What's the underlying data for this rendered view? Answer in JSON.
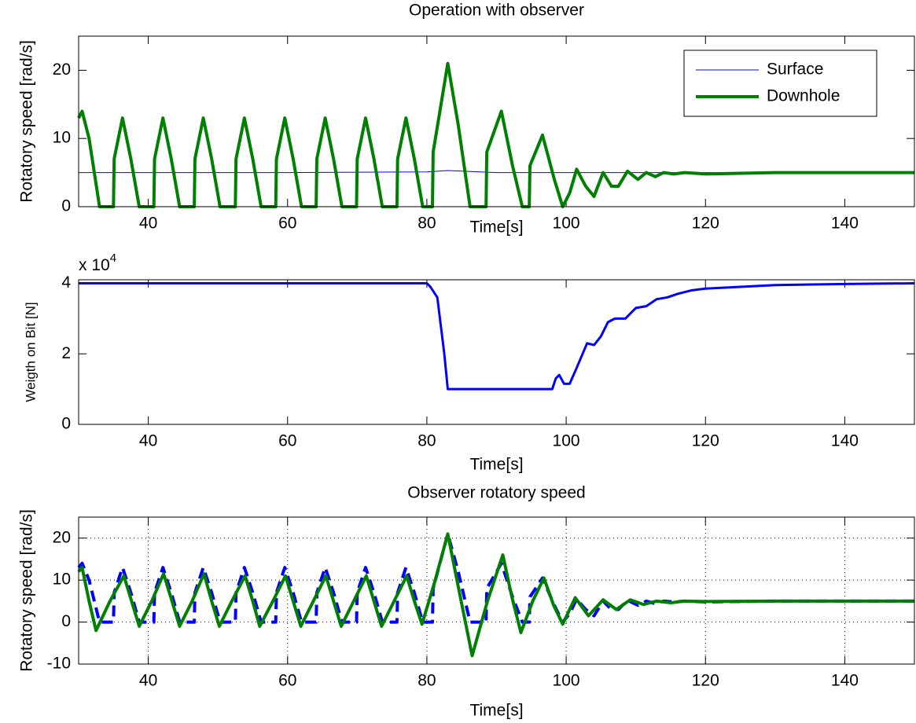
{
  "chart_data": [
    {
      "type": "line",
      "title": "Operation with observer",
      "xlabel": "Time[s]",
      "ylabel": "Rotatory speed [rad/s]",
      "xlim": [
        30,
        150
      ],
      "xticks": [
        40,
        60,
        80,
        100,
        120,
        140
      ],
      "ylim": [
        0,
        25
      ],
      "yticks": [
        0,
        10,
        20
      ],
      "grid": false,
      "legend": "upper right",
      "series": [
        {
          "name": "Surface",
          "color": "#0000ff",
          "line_width": 1,
          "dashed": false,
          "x": [
            30,
            60,
            80,
            83,
            90,
            100,
            150
          ],
          "values": [
            5,
            5,
            5.1,
            5.3,
            5,
            5,
            5
          ]
        },
        {
          "name": "Downhole",
          "color": "#008000",
          "line_width": 4,
          "dashed": false,
          "x": [
            30,
            30.5,
            31.5,
            33,
            35,
            35.1,
            36.3,
            37.5,
            38.7,
            40.8,
            40.9,
            42.1,
            43.3,
            44.5,
            46.6,
            46.7,
            47.9,
            49.1,
            50.3,
            52.5,
            52.6,
            53.8,
            55,
            56.2,
            58.3,
            58.4,
            59.6,
            60.8,
            62,
            64.1,
            64.2,
            65.4,
            66.6,
            67.8,
            69.9,
            70,
            71.2,
            72.4,
            73.6,
            75.7,
            75.8,
            77,
            78.2,
            79.4,
            80.8,
            80.9,
            83,
            84.5,
            86.2,
            88.5,
            88.6,
            90.7,
            92.3,
            93.7,
            94.7,
            94.8,
            96.6,
            98.3,
            99.5,
            100.5,
            101.5,
            102.8,
            104,
            105.3,
            106.5,
            107.5,
            108.8,
            110.3,
            111.5,
            112.8,
            114,
            115.5,
            117,
            120,
            130,
            150
          ],
          "values": [
            13,
            14,
            10,
            0,
            0,
            7,
            13,
            7,
            0,
            0,
            7,
            13,
            7,
            0,
            0,
            7,
            13,
            7,
            0,
            0,
            7,
            13,
            7,
            0,
            0,
            7,
            13,
            7,
            0,
            0,
            7,
            13,
            7,
            0,
            0,
            7,
            13,
            7,
            0,
            0,
            7,
            13,
            7,
            0,
            0,
            8,
            21,
            12,
            0,
            0,
            8,
            14,
            6,
            0,
            0,
            6,
            10.5,
            4,
            0,
            2,
            5.5,
            3,
            1.5,
            5,
            3,
            3,
            5.2,
            4,
            5,
            4.4,
            5,
            4.8,
            5,
            4.8,
            5,
            5
          ]
        }
      ]
    },
    {
      "type": "line",
      "xlabel": "Time[s]",
      "ylabel": "Weigth on Bit [N]",
      "y_multiplier": {
        "base": "x 10",
        "exponent": "4"
      },
      "xlim": [
        30,
        150
      ],
      "xticks": [
        40,
        60,
        80,
        100,
        120,
        140
      ],
      "ylim": [
        0,
        41000
      ],
      "yticks": [
        0,
        {
          "value": 20000,
          "label": "2"
        },
        {
          "value": 40000,
          "label": "4"
        }
      ],
      "grid": false,
      "series": [
        {
          "color": "#0000ff",
          "line_width": 3,
          "dashed": false,
          "x": [
            30,
            80,
            80.5,
            81.5,
            82.5,
            83,
            98,
            98.5,
            99,
            99.7,
            100.5,
            101.5,
            103,
            104,
            105,
            106,
            107,
            108.5,
            110,
            111.5,
            113,
            114.5,
            116,
            118,
            120,
            125,
            130,
            140,
            150
          ],
          "values": [
            40000,
            40000,
            39000,
            36000,
            20000,
            10000,
            10000,
            13000,
            14000,
            11500,
            11500,
            16000,
            23000,
            22500,
            25000,
            29000,
            30000,
            30000,
            33000,
            33500,
            35500,
            36000,
            37000,
            38000,
            38500,
            39000,
            39500,
            39800,
            40000
          ]
        }
      ]
    },
    {
      "type": "line",
      "title": "Observer rotatory speed",
      "xlabel": "Time[s]",
      "ylabel": "Rotatory speed [rad/s]",
      "xlim": [
        30,
        150
      ],
      "xticks": [
        40,
        60,
        80,
        100,
        120,
        140
      ],
      "ylim": [
        -10,
        25
      ],
      "yticks": [
        -10,
        0,
        10,
        20
      ],
      "grid": true,
      "series": [
        {
          "color": "#0000ff",
          "line_width": 4,
          "dashed": true,
          "x": [
            30,
            30.5,
            31.5,
            33,
            35,
            35.1,
            36.3,
            37.5,
            38.7,
            40.8,
            40.9,
            42.1,
            43.3,
            44.5,
            46.6,
            46.7,
            47.9,
            49.1,
            50.3,
            52.5,
            52.6,
            53.8,
            55,
            56.2,
            58.3,
            58.4,
            59.6,
            60.8,
            62,
            64.1,
            64.2,
            65.4,
            66.6,
            67.8,
            69.9,
            70,
            71.2,
            72.4,
            73.6,
            75.7,
            75.8,
            77,
            78.2,
            79.4,
            80.8,
            80.9,
            83,
            84.5,
            86.2,
            88.5,
            88.6,
            90.7,
            92.3,
            93.7,
            94.7,
            94.8,
            96.6,
            98.3,
            99.5,
            100.5,
            101.5,
            102.8,
            104,
            105.3,
            106.5,
            107.5,
            108.8,
            110.3,
            111.5,
            112.8,
            114,
            115.5,
            117,
            120,
            130,
            150
          ],
          "values": [
            13,
            14,
            10,
            0,
            0,
            7,
            13,
            7,
            0,
            0,
            7,
            13,
            7,
            0,
            0,
            7,
            13,
            7,
            0,
            0,
            7,
            13,
            7,
            0,
            0,
            7,
            13,
            7,
            0,
            0,
            7,
            13,
            7,
            0,
            0,
            7,
            13,
            7,
            0,
            0,
            7,
            13,
            7,
            0,
            0,
            8,
            21,
            12,
            0,
            0,
            8,
            14,
            6,
            0,
            0,
            6,
            10.5,
            4,
            0,
            2,
            5.5,
            3,
            1.5,
            5,
            3,
            3,
            5.2,
            4,
            5,
            4.4,
            5,
            4.8,
            5,
            4.8,
            5,
            5
          ]
        },
        {
          "color": "#008000",
          "line_width": 4,
          "dashed": false,
          "x": [
            30,
            30.5,
            31.5,
            32.5,
            34.5,
            36.5,
            37.6,
            38.7,
            40.5,
            42.2,
            43.4,
            44.5,
            46.3,
            48,
            49.1,
            50.2,
            52,
            53.9,
            55,
            56,
            57.9,
            59.7,
            60.8,
            61.9,
            63.7,
            65.5,
            66.6,
            67.7,
            69.5,
            71.3,
            72.4,
            73.5,
            75.3,
            77.1,
            78.2,
            79.3,
            81.2,
            83,
            84.8,
            86.5,
            88.7,
            90.9,
            92.2,
            93.5,
            95.2,
            96.8,
            98.2,
            99.5,
            101.3,
            103.2,
            105.3,
            107.2,
            109.2,
            111.1,
            113,
            115,
            117,
            120,
            130,
            150
          ],
          "values": [
            12,
            13,
            5,
            -2,
            5,
            11,
            5,
            -1,
            5,
            11.5,
            5,
            -1,
            5,
            11.5,
            5,
            -1,
            5,
            11,
            5,
            -1,
            5,
            11,
            5,
            -1,
            5,
            11,
            5,
            -1,
            5,
            11,
            5,
            -1,
            5,
            11,
            5,
            -0.5,
            10,
            21,
            6,
            -8,
            5,
            16,
            6,
            -2.5,
            5,
            10.5,
            4,
            -0.5,
            5.8,
            1.5,
            5.3,
            3,
            5.3,
            4.2,
            5,
            4.6,
            5,
            4.9,
            5,
            5
          ]
        }
      ]
    }
  ]
}
